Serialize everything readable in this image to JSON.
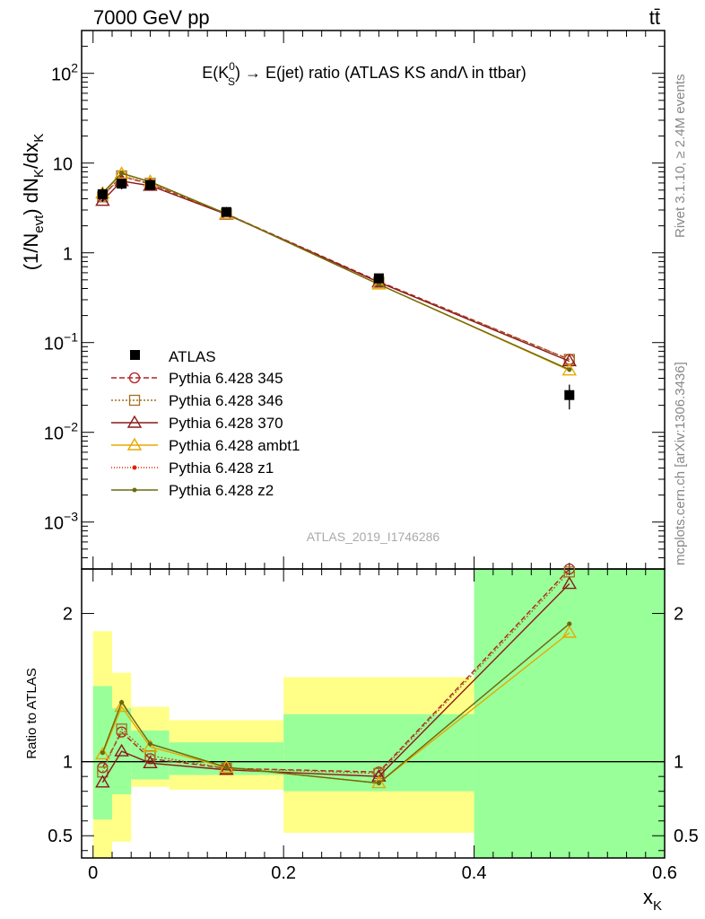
{
  "header": {
    "left": "7000 GeV pp",
    "right": "tt̄"
  },
  "side_labels": {
    "rivet": "Rivet 3.1.10, ≥ 2.4M events",
    "mcplots": "mcplots.cern.ch [arXiv:1306.3436]"
  },
  "watermark": "ATLAS_2019_I1746286",
  "chart_data": [
    {
      "type": "line",
      "title": "E(K⁰S) → E(jet) ratio (ATLAS KS andΛ in ttbar)",
      "title_parts": {
        "pre": "E(K",
        "sup": "0",
        "sub": "S",
        "post": ") → E(jet) ratio (ATLAS KS andΛ in ttbar)"
      },
      "ylabel": "(1/N_evt) dN_K/dx_K",
      "yscale": "log",
      "ylim": [
        0.0003,
        300
      ],
      "xlim": [
        -0.012,
        0.6
      ],
      "grid": false,
      "legend_position": "bottom-left",
      "x": [
        0.01,
        0.03,
        0.06,
        0.14,
        0.3,
        0.5
      ],
      "yticks": [
        {
          "v": 0.001,
          "base": "10",
          "exp": "−3"
        },
        {
          "v": 0.01,
          "base": "10",
          "exp": "−2"
        },
        {
          "v": 0.1,
          "base": "10",
          "exp": "−1"
        },
        {
          "v": 1,
          "base": "1",
          "exp": ""
        },
        {
          "v": 10,
          "base": "10",
          "exp": ""
        },
        {
          "v": 100,
          "base": "10",
          "exp": "2"
        }
      ],
      "data": {
        "name": "ATLAS",
        "values": [
          4.5,
          5.9,
          5.7,
          2.85,
          0.52,
          0.026
        ],
        "err_low": [
          0.8,
          0.8,
          0.6,
          0.25,
          0.05,
          0.008
        ],
        "err_high": [
          0.8,
          0.8,
          0.6,
          0.25,
          0.05,
          0.008
        ]
      },
      "series": [
        {
          "name": "Pythia 6.428 345",
          "color": "#b22222",
          "dash": "6,3",
          "marker": "circle",
          "values": [
            4.35,
            7.1,
            5.85,
            2.72,
            0.48,
            0.065
          ]
        },
        {
          "name": "Pythia 6.428 346",
          "color": "#a07020",
          "dash": "2,2",
          "marker": "square",
          "values": [
            4.2,
            7.2,
            5.95,
            2.72,
            0.47,
            0.065
          ]
        },
        {
          "name": "Pythia 6.428 370",
          "color": "#8b1a1a",
          "dash": "",
          "marker": "triangle",
          "values": [
            3.8,
            6.3,
            5.6,
            2.68,
            0.47,
            0.062
          ]
        },
        {
          "name": "Pythia 6.428 ambt1",
          "color": "#e8a800",
          "dash": "",
          "marker": "triangle",
          "values": [
            4.6,
            7.6,
            6.2,
            2.72,
            0.445,
            0.049
          ]
        },
        {
          "name": "Pythia 6.428 z1",
          "color": "#dd2200",
          "dash": "1,2",
          "marker": "dot",
          "values": [
            4.65,
            7.7,
            6.2,
            2.72,
            0.445,
            0.05
          ]
        },
        {
          "name": "Pythia 6.428 z2",
          "color": "#6b6b10",
          "dash": "",
          "marker": "dot",
          "values": [
            4.65,
            7.7,
            6.2,
            2.72,
            0.445,
            0.05
          ]
        }
      ]
    },
    {
      "type": "line",
      "title": "",
      "xlabel": "x_K",
      "ylabel": "Ratio to ATLAS",
      "ylim": [
        0.35,
        2.3
      ],
      "xlim": [
        -0.012,
        0.6
      ],
      "xticks": [
        0,
        0.2,
        0.4,
        0.6
      ],
      "xtick_labels": [
        "0",
        "0.2",
        "0.4",
        "0.6"
      ],
      "yticks": [
        0.5,
        1,
        2
      ],
      "ytick_labels": [
        "0.5",
        "1",
        "2"
      ],
      "reference_line": 1,
      "bands": [
        {
          "x": [
            0.0,
            0.02
          ],
          "stat": [
            0.61,
            1.51
          ],
          "total": [
            0.35,
            1.88
          ]
        },
        {
          "x": [
            0.02,
            0.04
          ],
          "stat": [
            0.78,
            1.36
          ],
          "total": [
            0.46,
            1.6
          ]
        },
        {
          "x": [
            0.04,
            0.08
          ],
          "stat": [
            0.88,
            1.21
          ],
          "total": [
            0.83,
            1.37
          ]
        },
        {
          "x": [
            0.08,
            0.2
          ],
          "stat": [
            0.91,
            1.13
          ],
          "total": [
            0.81,
            1.28
          ]
        },
        {
          "x": [
            0.2,
            0.4
          ],
          "stat": [
            0.8,
            1.32
          ],
          "total": [
            0.52,
            1.57
          ]
        },
        {
          "x": [
            0.4,
            0.6
          ],
          "stat": [
            0.35,
            2.3
          ],
          "total": [
            0.35,
            2.3
          ]
        }
      ],
      "x": [
        0.01,
        0.03,
        0.06,
        0.14,
        0.3,
        0.5
      ],
      "series": [
        {
          "name": "Pythia 6.428 345",
          "values": [
            0.96,
            1.2,
            1.02,
            0.955,
            0.93,
            2.3
          ]
        },
        {
          "name": "Pythia 6.428 346",
          "values": [
            0.93,
            1.22,
            1.04,
            0.955,
            0.92,
            2.28
          ]
        },
        {
          "name": "Pythia 6.428 370",
          "values": [
            0.86,
            1.07,
            0.99,
            0.945,
            0.9,
            2.2
          ]
        },
        {
          "name": "Pythia 6.428 ambt1",
          "values": [
            1.05,
            1.37,
            1.1,
            0.96,
            0.855,
            1.87
          ]
        },
        {
          "name": "Pythia 6.428 z1",
          "values": [
            1.06,
            1.4,
            1.12,
            0.962,
            0.855,
            1.93
          ]
        },
        {
          "name": "Pythia 6.428 z2",
          "values": [
            1.06,
            1.4,
            1.12,
            0.962,
            0.855,
            1.93
          ]
        }
      ]
    }
  ]
}
